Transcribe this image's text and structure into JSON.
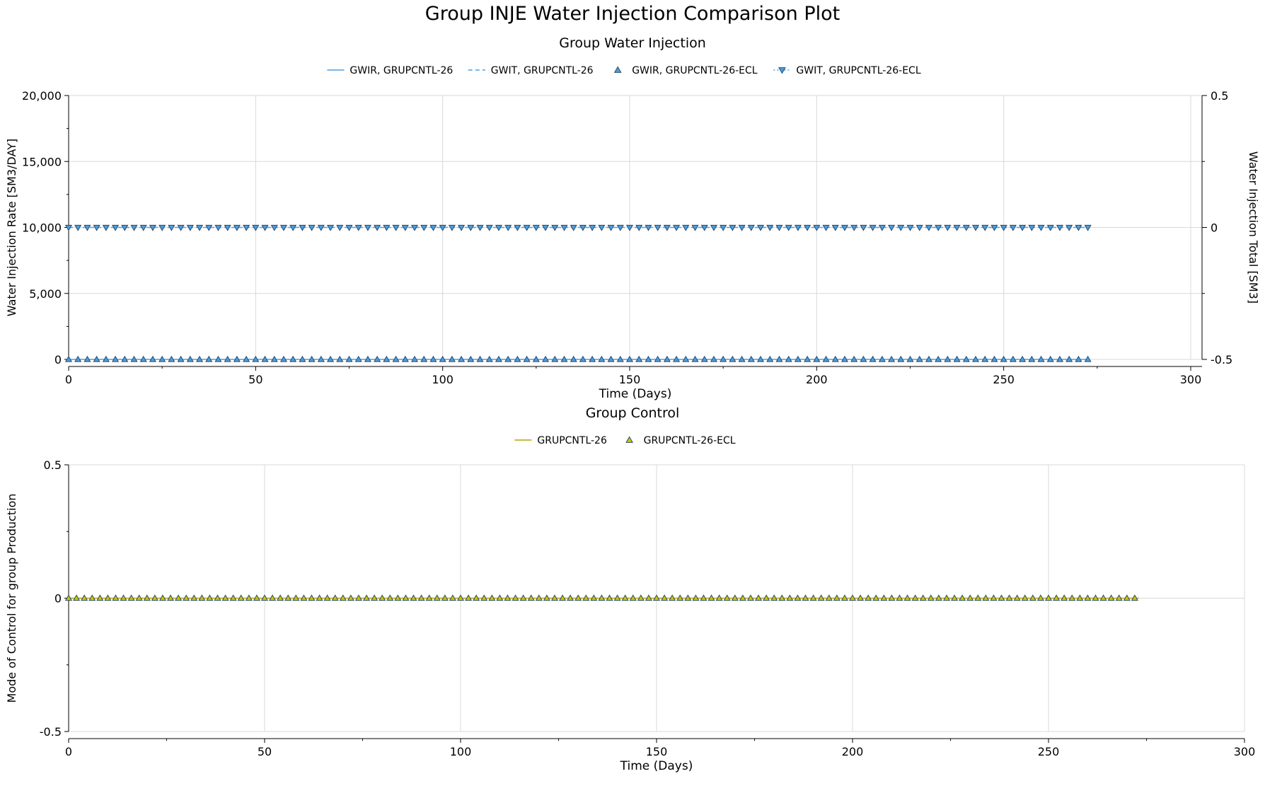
{
  "title": "Group INJE Water Injection Comparison Plot",
  "chart_data": [
    {
      "id": "injection",
      "type": "line",
      "subtitle": "Group Water Injection",
      "xlabel": "Time (Days)",
      "ylabel": "Water Injection Rate [SM3/DAY]",
      "y2label": "Water Injection Total [SM3]",
      "xlim": [
        0,
        300
      ],
      "ylim": [
        0,
        20000
      ],
      "y2lim": [
        -0.5,
        0.5
      ],
      "xticks": [
        0,
        50,
        100,
        150,
        200,
        250,
        300
      ],
      "yticks": [
        0,
        5000,
        10000,
        15000,
        20000
      ],
      "ytick_labels": [
        "0",
        "5,000",
        "10,000",
        "15,000",
        "20,000"
      ],
      "y2ticks": [
        -0.5,
        0,
        0.5
      ],
      "y2tick_labels": [
        "-0.5",
        "0",
        "0.5"
      ],
      "grid": true,
      "legend_position": "top-center",
      "series": [
        {
          "name": "GWIR, GRUPCNTL-26",
          "axis": "left",
          "style": "line-solid",
          "color": "#4a9ee0",
          "x": [
            0,
            273
          ],
          "y": [
            0,
            0
          ]
        },
        {
          "name": "GWIT, GRUPCNTL-26",
          "axis": "right",
          "style": "line-dashed",
          "color": "#4a9ee0",
          "x": [
            0,
            273
          ],
          "y": [
            0,
            0
          ]
        },
        {
          "name": "GWIR, GRUPCNTL-26-ECL",
          "axis": "left",
          "style": "marker-triangle-up",
          "color": "#4a9ee0",
          "x_start": 0,
          "x_end": 273,
          "x_step": 2.5,
          "value": 0
        },
        {
          "name": "GWIT, GRUPCNTL-26-ECL",
          "axis": "right",
          "style": "marker-triangle-down",
          "color": "#4a9ee0",
          "x_start": 0,
          "x_end": 273,
          "x_step": 2.5,
          "value": 0
        }
      ]
    },
    {
      "id": "control",
      "type": "line",
      "subtitle": "Group Control",
      "xlabel": "Time (Days)",
      "ylabel": "Mode of Control for group Production",
      "xlim": [
        0,
        300
      ],
      "ylim": [
        -0.5,
        0.5
      ],
      "xticks": [
        0,
        50,
        100,
        150,
        200,
        250,
        300
      ],
      "yticks": [
        -0.5,
        0,
        0.5
      ],
      "ytick_labels": [
        "-0.5",
        "0",
        "0.5"
      ],
      "grid": true,
      "legend_position": "top-center",
      "series": [
        {
          "name": "GRUPCNTL-26",
          "axis": "left",
          "style": "line-solid",
          "color": "#b5a300",
          "x": [
            0,
            273
          ],
          "y": [
            0,
            0
          ]
        },
        {
          "name": "GRUPCNTL-26-ECL",
          "axis": "left",
          "style": "marker-triangle-up",
          "color": "#c8c800",
          "x_start": 0,
          "x_end": 273,
          "x_step": 2,
          "value": 0
        }
      ]
    }
  ]
}
